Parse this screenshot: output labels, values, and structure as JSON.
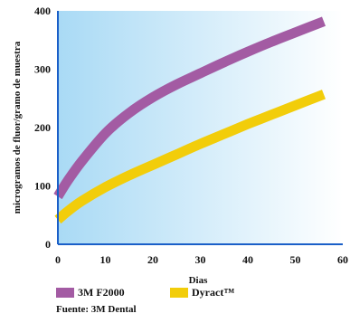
{
  "chart_data": {
    "type": "line",
    "title": "",
    "xlabel": "Dias",
    "ylabel": "microgramos de fluor/gramo de muestra",
    "xlim": [
      0,
      60
    ],
    "ylim": [
      0,
      400
    ],
    "x_ticks": [
      0,
      10,
      20,
      30,
      40,
      50,
      60
    ],
    "y_ticks": [
      0,
      100,
      200,
      300,
      400
    ],
    "grid": false,
    "legend_position": "bottom-left",
    "series": [
      {
        "name": "3M F2000",
        "color": "#a35ba3",
        "x": [
          0,
          2,
          5,
          10,
          15,
          20,
          25,
          30,
          35,
          40,
          45,
          50,
          56
        ],
        "y": [
          82,
          108,
          142,
          190,
          225,
          252,
          274,
          293,
          312,
          330,
          347,
          363,
          382
        ]
      },
      {
        "name": "Dyract™",
        "color": "#f2cd0a",
        "x": [
          0,
          2,
          5,
          10,
          15,
          20,
          25,
          30,
          35,
          40,
          45,
          50,
          56
        ],
        "y": [
          42,
          56,
          74,
          98,
          118,
          136,
          154,
          172,
          189,
          206,
          222,
          238,
          257
        ]
      }
    ],
    "background_gradient": [
      "#a9daf5",
      "#ffffff"
    ],
    "source": "Fuente: 3M Dental"
  }
}
